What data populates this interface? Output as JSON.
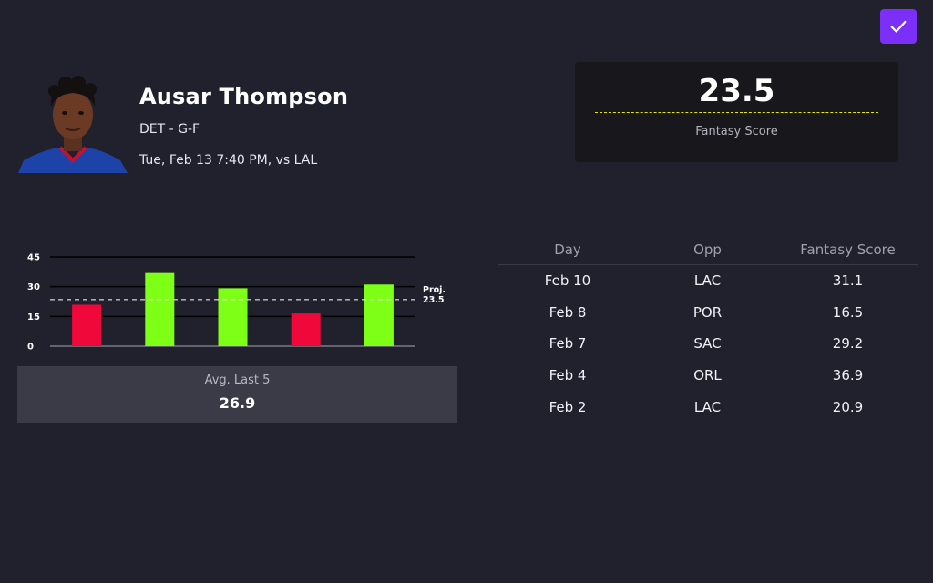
{
  "confirm": {
    "icon": "checkmark-icon",
    "color": "#7b2ff7"
  },
  "player": {
    "name": "Ausar Thompson",
    "team_position": "DET - G-F",
    "game_info": "Tue, Feb 13 7:40 PM, vs LAL"
  },
  "score_card": {
    "value": "23.5",
    "label": "Fantasy Score",
    "line_color": "#e8e800"
  },
  "chart_data": {
    "type": "bar",
    "categories": [
      "Feb 2",
      "Feb 4",
      "Feb 7",
      "Feb 8",
      "Feb 10"
    ],
    "values": [
      20.9,
      36.9,
      29.2,
      16.5,
      31.1
    ],
    "y_ticks": [
      "45",
      "30",
      "15",
      "0"
    ],
    "ylim": [
      0,
      45
    ],
    "projection": {
      "value": 23.5,
      "label_top": "Proj.",
      "label_value": "23.5"
    },
    "colors": {
      "over": "#7dff16",
      "under": "#f0083a"
    },
    "title": "",
    "xlabel": "",
    "ylabel": "",
    "grid": true
  },
  "average": {
    "label": "Avg. Last 5",
    "value": "26.9"
  },
  "table": {
    "headers": [
      "Day",
      "Opp",
      "Fantasy Score"
    ],
    "rows": [
      {
        "day": "Feb 10",
        "opp": "LAC",
        "score": "31.1"
      },
      {
        "day": "Feb 8",
        "opp": "POR",
        "score": "16.5"
      },
      {
        "day": "Feb 7",
        "opp": "SAC",
        "score": "29.2"
      },
      {
        "day": "Feb 4",
        "opp": "ORL",
        "score": "36.9"
      },
      {
        "day": "Feb 2",
        "opp": "LAC",
        "score": "20.9"
      }
    ]
  }
}
